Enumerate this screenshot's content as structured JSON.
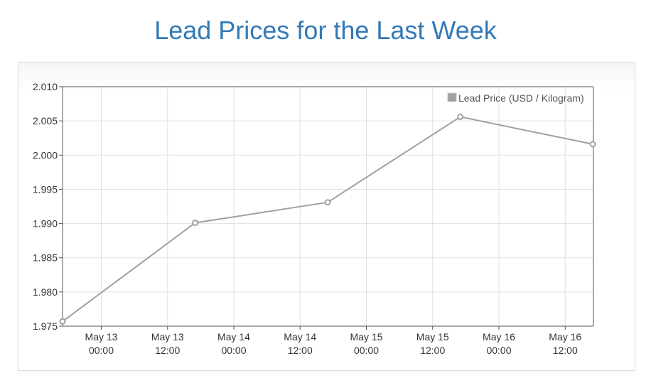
{
  "title": "Lead Prices for the Last Week",
  "chart_data": {
    "type": "line",
    "title": "Lead Prices for the Last Week",
    "xlabel": "",
    "ylabel": "",
    "ylim": [
      1.975,
      2.01
    ],
    "y_ticks": [
      "1.975",
      "1.980",
      "1.985",
      "1.990",
      "1.995",
      "2.000",
      "2.005",
      "2.010"
    ],
    "x_ticks": [
      {
        "date": "May 13",
        "time": "00:00"
      },
      {
        "date": "May 13",
        "time": "12:00"
      },
      {
        "date": "May 14",
        "time": "00:00"
      },
      {
        "date": "May 14",
        "time": "12:00"
      },
      {
        "date": "May 15",
        "time": "00:00"
      },
      {
        "date": "May 15",
        "time": "12:00"
      },
      {
        "date": "May 16",
        "time": "00:00"
      },
      {
        "date": "May 16",
        "time": "12:00"
      }
    ],
    "grid": true,
    "legend_position": "top-right",
    "series": [
      {
        "name": "Lead Price (USD / Kilogram)",
        "color": "#a0a0a0",
        "points": [
          {
            "x": "May 12 17:00",
            "y": 1.9757
          },
          {
            "x": "May 13 17:00",
            "y": 1.9901
          },
          {
            "x": "May 14 17:00",
            "y": 1.9931
          },
          {
            "x": "May 15 17:00",
            "y": 2.0056
          },
          {
            "x": "May 16 17:00",
            "y": 2.0016
          }
        ]
      }
    ]
  }
}
